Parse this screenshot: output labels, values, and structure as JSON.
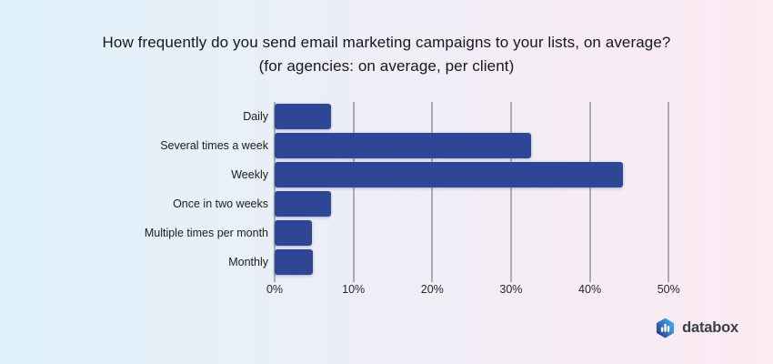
{
  "title": {
    "line1": "How frequently do you send email marketing campaigns to your lists, on average?",
    "line2": "(for agencies: on average, per client)"
  },
  "chart_data": {
    "type": "bar",
    "orientation": "horizontal",
    "title": "How frequently do you send email marketing campaigns to your lists, on average? (for agencies: on average, per client)",
    "categories": [
      "Daily",
      "Several times a week",
      "Weekly",
      "Once in two weeks",
      "Multiple times per month",
      "Monthly"
    ],
    "values": [
      7.1,
      32.6,
      44.2,
      7.2,
      4.7,
      4.9
    ],
    "value_unit": "%",
    "x_ticks": [
      "0%",
      "10%",
      "20%",
      "30%",
      "40%",
      "50%"
    ],
    "x_tick_values": [
      0,
      10,
      20,
      30,
      40,
      50
    ],
    "xlim": [
      0,
      52.4
    ],
    "grid": true,
    "legend": "none",
    "bar_color": "#2e4795",
    "gridline_color": "#ababab"
  },
  "branding": {
    "logo_text": "databox",
    "logo_hex_gradient_start": "#2b3f9a",
    "logo_hex_gradient_end": "#41b0e8",
    "logo_bars_color": "#ffffff",
    "logo_text_color": "#3a3f4b"
  },
  "background": {
    "gradient_left": "#dff2fb",
    "gradient_right": "#fdeaf2"
  }
}
